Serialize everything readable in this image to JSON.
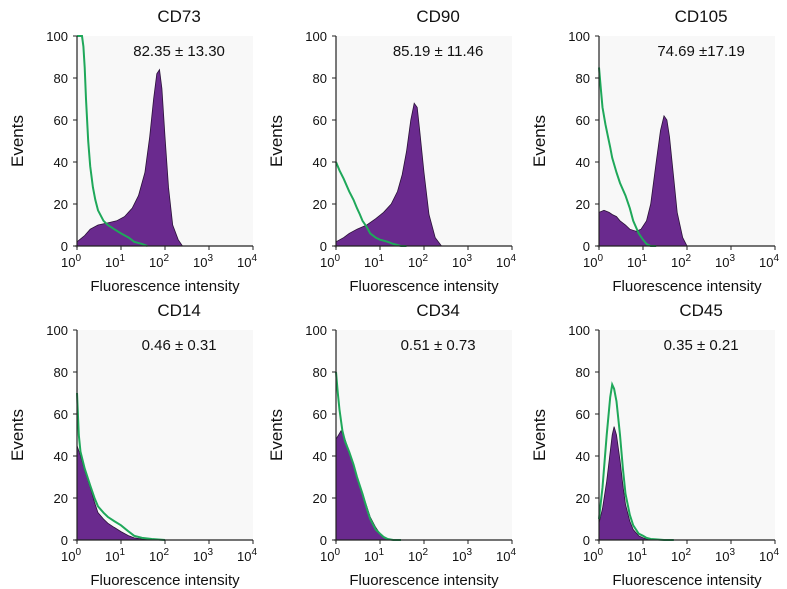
{
  "colors": {
    "stained": "#6a2a8e",
    "stained_edge": "#2a1238",
    "control": "#1fa85a",
    "axis": "#222222",
    "panel_bg": "#f8f8f8"
  },
  "axes": {
    "ylabel": "Events",
    "xlabel": "Fluorescence intensity",
    "ylim": [
      0,
      100
    ],
    "yticks": [
      "0",
      "20",
      "40",
      "60",
      "80",
      "100"
    ],
    "xscale": "log",
    "xlim": [
      1,
      10000
    ],
    "xticks": [
      {
        "base": "10",
        "exp": "0"
      },
      {
        "base": "10",
        "exp": "1"
      },
      {
        "base": "10",
        "exp": "2"
      },
      {
        "base": "10",
        "exp": "3"
      },
      {
        "base": "10",
        "exp": "4"
      }
    ]
  },
  "chart_data": [
    {
      "type": "area",
      "title": "CD73",
      "stat": "82.35 ± 13.30",
      "series": [
        {
          "role": "stained",
          "x": [
            1,
            1.5,
            2,
            3,
            5,
            8,
            12,
            18,
            25,
            35,
            45,
            55,
            65,
            75,
            85,
            100,
            120,
            150,
            200,
            250
          ],
          "values": [
            2,
            5,
            8,
            10,
            11,
            12,
            14,
            18,
            24,
            35,
            52,
            70,
            82,
            84,
            75,
            52,
            28,
            10,
            3,
            0
          ]
        },
        {
          "role": "control",
          "x": [
            1,
            1.1,
            1.2,
            1.3,
            1.4,
            1.5,
            1.6,
            1.8,
            2,
            2.3,
            2.6,
            3,
            4,
            5,
            7,
            10,
            15,
            20,
            30,
            40
          ],
          "values": [
            100,
            100,
            100,
            100,
            95,
            85,
            70,
            50,
            38,
            28,
            22,
            17,
            12,
            10,
            8,
            6,
            4,
            2,
            1,
            0
          ]
        }
      ]
    },
    {
      "type": "area",
      "title": "CD90",
      "stat": "85.19 ± 11.46",
      "series": [
        {
          "role": "stained",
          "x": [
            1,
            1.5,
            2,
            3,
            5,
            8,
            12,
            18,
            25,
            32,
            40,
            50,
            60,
            70,
            80,
            100,
            130,
            180,
            250
          ],
          "values": [
            2,
            4,
            6,
            8,
            10,
            13,
            16,
            20,
            26,
            34,
            45,
            60,
            68,
            66,
            55,
            35,
            15,
            4,
            0
          ]
        },
        {
          "role": "control",
          "x": [
            1,
            1.2,
            1.5,
            2,
            2.5,
            3,
            3.5,
            4,
            5,
            6,
            8,
            10,
            15,
            20,
            30,
            40
          ],
          "values": [
            40,
            36,
            32,
            26,
            22,
            18,
            15,
            12,
            9,
            6,
            4,
            3,
            2,
            1,
            0,
            0
          ]
        }
      ]
    },
    {
      "type": "area",
      "title": "CD105",
      "stat": "74.69 ±17.19",
      "series": [
        {
          "role": "stained",
          "x": [
            1,
            1.3,
            1.7,
            2,
            2.5,
            3,
            4,
            5,
            7,
            9,
            12,
            15,
            20,
            25,
            30,
            35,
            40,
            50,
            60,
            80,
            100
          ],
          "values": [
            16,
            17,
            16,
            15,
            14,
            12,
            10,
            8,
            7,
            8,
            12,
            20,
            40,
            55,
            62,
            60,
            52,
            32,
            16,
            4,
            0
          ]
        },
        {
          "role": "control",
          "x": [
            1,
            1.1,
            1.2,
            1.4,
            1.6,
            1.8,
            2,
            2.5,
            3,
            4,
            5,
            6,
            8,
            10,
            12,
            15,
            20
          ],
          "values": [
            85,
            75,
            66,
            58,
            52,
            47,
            42,
            35,
            30,
            24,
            18,
            12,
            6,
            3,
            1,
            0,
            0
          ]
        }
      ]
    },
    {
      "type": "area",
      "title": "CD14",
      "stat": "0.46 ± 0.31",
      "series": [
        {
          "role": "stained",
          "x": [
            1,
            1.2,
            1.5,
            2,
            2.5,
            3,
            4,
            5,
            7,
            10,
            15,
            20,
            30,
            50,
            100
          ],
          "values": [
            45,
            40,
            33,
            25,
            18,
            13,
            10,
            8,
            6,
            4,
            2,
            1,
            0.5,
            0.2,
            0
          ]
        },
        {
          "role": "control",
          "x": [
            1,
            1.1,
            1.2,
            1.5,
            2,
            2.5,
            3,
            4,
            5,
            7,
            10,
            15,
            20,
            30,
            50,
            100
          ],
          "values": [
            70,
            50,
            42,
            34,
            26,
            20,
            16,
            13,
            11,
            9,
            7,
            4,
            2,
            1,
            0.5,
            0
          ]
        }
      ]
    },
    {
      "type": "area",
      "title": "CD34",
      "stat": "0.51 ± 0.73",
      "series": [
        {
          "role": "stained",
          "x": [
            1,
            1.3,
            1.6,
            2,
            2.5,
            3,
            4,
            5,
            6,
            8,
            10,
            12,
            15,
            20,
            30
          ],
          "values": [
            48,
            52,
            48,
            42,
            36,
            30,
            22,
            16,
            11,
            6,
            3,
            1.5,
            0.5,
            0,
            0
          ]
        },
        {
          "role": "control",
          "x": [
            1,
            1.1,
            1.2,
            1.4,
            1.6,
            2,
            2.5,
            3,
            4,
            5,
            6,
            8,
            10,
            12,
            15,
            20,
            30
          ],
          "values": [
            80,
            70,
            62,
            52,
            47,
            42,
            36,
            30,
            22,
            15,
            10,
            5,
            3,
            1.5,
            0.5,
            0,
            0
          ]
        }
      ]
    },
    {
      "type": "area",
      "title": "CD45",
      "stat": "0.35 ± 0.21",
      "series": [
        {
          "role": "stained",
          "x": [
            1,
            1.2,
            1.5,
            1.8,
            2,
            2.2,
            2.5,
            3,
            3.5,
            4,
            5,
            6,
            8,
            10,
            12,
            15,
            20,
            30
          ],
          "values": [
            8,
            15,
            28,
            42,
            50,
            54,
            50,
            38,
            26,
            17,
            9,
            5,
            2,
            1,
            0.5,
            0,
            0,
            0
          ]
        },
        {
          "role": "control",
          "x": [
            1,
            1.2,
            1.5,
            1.8,
            2,
            2.2,
            2.5,
            3,
            3.5,
            4,
            5,
            6,
            8,
            10,
            12,
            15,
            20,
            30,
            50
          ],
          "values": [
            10,
            25,
            50,
            68,
            74,
            72,
            66,
            50,
            34,
            22,
            12,
            7,
            3,
            2,
            1,
            0.5,
            0.3,
            0,
            0
          ]
        }
      ]
    }
  ]
}
